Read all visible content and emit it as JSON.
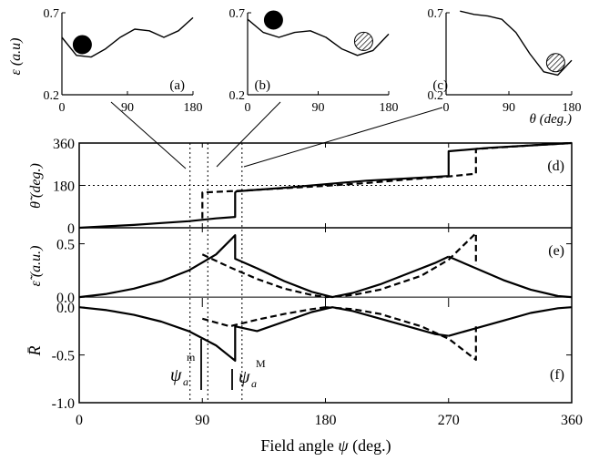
{
  "chart_data": [
    {
      "panel": "(a)",
      "type": "line",
      "ylabel": "ε (a.u)",
      "yticks": [
        "0.2",
        "0.7"
      ],
      "ylim": [
        0.2,
        0.7
      ],
      "xticks": [
        "0",
        "90",
        "180"
      ],
      "xlim": [
        0,
        180
      ],
      "curve": {
        "x": [
          0,
          20,
          40,
          60,
          80,
          100,
          120,
          140,
          160,
          180
        ],
        "y": [
          0.55,
          0.44,
          0.43,
          0.48,
          0.55,
          0.6,
          0.59,
          0.55,
          0.59,
          0.67
        ]
      },
      "ball": {
        "x": 28,
        "y": 0.45,
        "style": "filled"
      }
    },
    {
      "panel": "(b)",
      "type": "line",
      "yticks": [
        "0.2",
        "0.7"
      ],
      "ylim": [
        0.2,
        0.7
      ],
      "xticks": [
        "0",
        "90",
        "180"
      ],
      "xlim": [
        0,
        180
      ],
      "curve": {
        "x": [
          0,
          20,
          40,
          60,
          80,
          100,
          120,
          140,
          160,
          180
        ],
        "y": [
          0.66,
          0.58,
          0.55,
          0.58,
          0.59,
          0.55,
          0.48,
          0.44,
          0.47,
          0.57
        ]
      },
      "balls": [
        {
          "x": 33,
          "y": 0.6,
          "style": "filled"
        },
        {
          "x": 148,
          "y": 0.47,
          "style": "hatched"
        }
      ]
    },
    {
      "panel": "(c)",
      "type": "line",
      "yticks": [
        "0.2",
        "0.7"
      ],
      "ylim": [
        0.2,
        0.7
      ],
      "xticks": [
        "0",
        "90",
        "180"
      ],
      "xlim": [
        0,
        180
      ],
      "xlabel": "θ (deg.)",
      "curve": {
        "x": [
          20,
          40,
          60,
          80,
          100,
          120,
          140,
          160,
          180
        ],
        "y": [
          0.71,
          0.69,
          0.68,
          0.66,
          0.58,
          0.45,
          0.34,
          0.32,
          0.41
        ]
      },
      "ball": {
        "x": 157,
        "y": 0.34,
        "style": "hatched"
      }
    },
    {
      "panel": "(d)",
      "type": "line",
      "ylabel": "θ̃ (deg.)",
      "yticks": [
        "0",
        "180",
        "360"
      ],
      "ylim": [
        0,
        360
      ],
      "xlim": [
        0,
        360
      ],
      "reference_line": 180,
      "series": [
        {
          "style": "solid",
          "x": [
            0,
            20,
            40,
            60,
            80,
            100,
            114,
            114,
            115,
            150,
            180,
            210,
            240,
            270,
            270,
            300,
            330,
            360
          ],
          "y": [
            0,
            6,
            12,
            20,
            28,
            40,
            46,
            150,
            155,
            170,
            185,
            200,
            210,
            220,
            325,
            340,
            350,
            360
          ]
        },
        {
          "style": "dashed",
          "x": [
            90,
            90,
            120,
            150,
            180,
            210,
            240,
            270,
            290,
            290,
            330,
            360
          ],
          "y": [
            40,
            150,
            158,
            168,
            178,
            190,
            205,
            218,
            230,
            335,
            350,
            360
          ]
        }
      ]
    },
    {
      "panel": "(e)",
      "type": "line",
      "ylabel": "ε̃ (a.u.)",
      "yticks": [
        "0.0",
        "0.5"
      ],
      "ylim": [
        -0.05,
        0.65
      ],
      "xlim": [
        0,
        360
      ],
      "series": [
        {
          "style": "solid",
          "x": [
            0,
            20,
            40,
            60,
            80,
            100,
            114,
            114,
            130,
            150,
            170,
            185,
            200,
            220,
            240,
            260,
            270
          ],
          "y": [
            0,
            0.03,
            0.08,
            0.15,
            0.25,
            0.4,
            0.58,
            0.36,
            0.27,
            0.15,
            0.05,
            0.0,
            0.04,
            0.12,
            0.22,
            0.32,
            0.38
          ]
        },
        {
          "style": "solid",
          "x": [
            270,
            290,
            310,
            330,
            350,
            360
          ],
          "y": [
            0.38,
            0.27,
            0.16,
            0.07,
            0.01,
            0
          ]
        },
        {
          "style": "dashed",
          "x": [
            90,
            110,
            130,
            150,
            170,
            180
          ],
          "y": [
            0.4,
            0.28,
            0.17,
            0.08,
            0.02,
            0
          ]
        },
        {
          "style": "dashed",
          "x": [
            180,
            200,
            220,
            250,
            270,
            290,
            290
          ],
          "y": [
            0,
            0.02,
            0.07,
            0.2,
            0.35,
            0.6,
            0.3
          ]
        }
      ]
    },
    {
      "panel": "(f)",
      "type": "line",
      "ylabel": "R̄",
      "yticks": [
        "-1.0",
        "-0.5",
        "0.0"
      ],
      "ylim": [
        -1.0,
        0.05
      ],
      "xlabel": "Field angle ψ (deg.)",
      "xticks": [
        "0",
        "90",
        "180",
        "270",
        "360"
      ],
      "xlim": [
        0,
        360
      ],
      "annotations": [
        "ψa m",
        "ψa M"
      ],
      "series": [
        {
          "style": "solid",
          "x": [
            0,
            20,
            40,
            60,
            80,
            100,
            114,
            114,
            130,
            150,
            170,
            185,
            200,
            220,
            240,
            260,
            270
          ],
          "y": [
            0,
            -0.03,
            -0.08,
            -0.15,
            -0.25,
            -0.4,
            -0.56,
            -0.2,
            -0.25,
            -0.15,
            -0.05,
            0,
            -0.04,
            -0.12,
            -0.2,
            -0.28,
            -0.3
          ]
        },
        {
          "style": "solid",
          "x": [
            270,
            290,
            310,
            330,
            350,
            360
          ],
          "y": [
            -0.3,
            -0.22,
            -0.14,
            -0.06,
            -0.01,
            0
          ]
        },
        {
          "style": "dashed",
          "x": [
            90,
            110,
            130,
            150,
            170,
            180
          ],
          "y": [
            -0.12,
            -0.2,
            -0.13,
            -0.07,
            -0.02,
            0
          ]
        },
        {
          "style": "dashed",
          "x": [
            180,
            200,
            220,
            250,
            270,
            290,
            290
          ],
          "y": [
            0,
            -0.02,
            -0.07,
            -0.2,
            -0.33,
            -0.55,
            -0.2
          ]
        }
      ]
    }
  ]
}
